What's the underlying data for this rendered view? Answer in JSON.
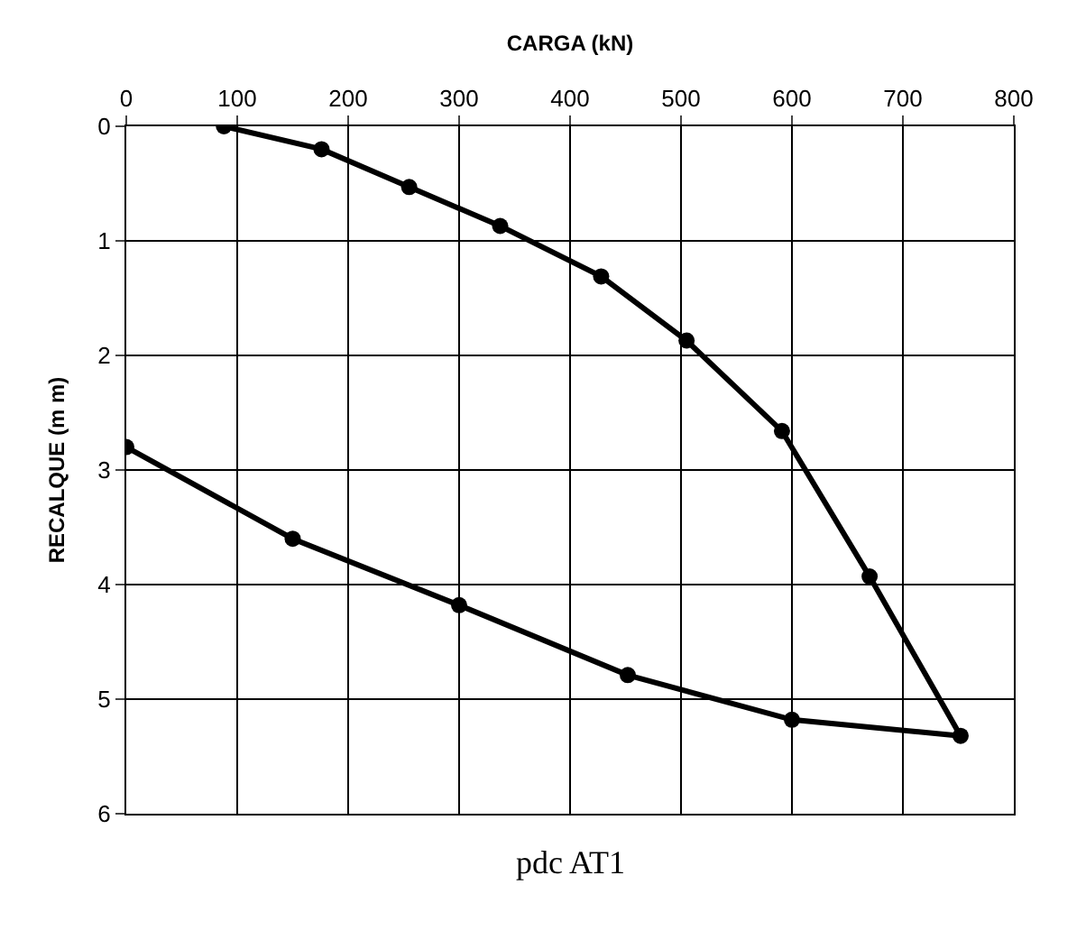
{
  "chart_data": {
    "type": "line",
    "xlabel": "CARGA (kN)",
    "ylabel": "RECALQUE (m m)",
    "annotations": [
      "pdc AT1"
    ],
    "series": [
      {
        "color": "#000000",
        "x": [
          88,
          176,
          255,
          337,
          428,
          505,
          591,
          670,
          752,
          600,
          452,
          300,
          150,
          0
        ],
        "values": [
          0.0,
          0.2,
          0.53,
          0.87,
          1.31,
          1.87,
          2.66,
          3.93,
          5.32,
          5.18,
          4.79,
          4.18,
          3.6,
          2.8
        ]
      }
    ],
    "xlim": [
      0,
      800
    ],
    "xticks": [
      0,
      100,
      200,
      300,
      400,
      500,
      600,
      700,
      800
    ],
    "ylim": [
      6,
      0
    ],
    "yticks": [
      0,
      1,
      2,
      3,
      4,
      5,
      6
    ],
    "grid": true,
    "legend": false,
    "marker": "circle",
    "line_style": "solid"
  }
}
